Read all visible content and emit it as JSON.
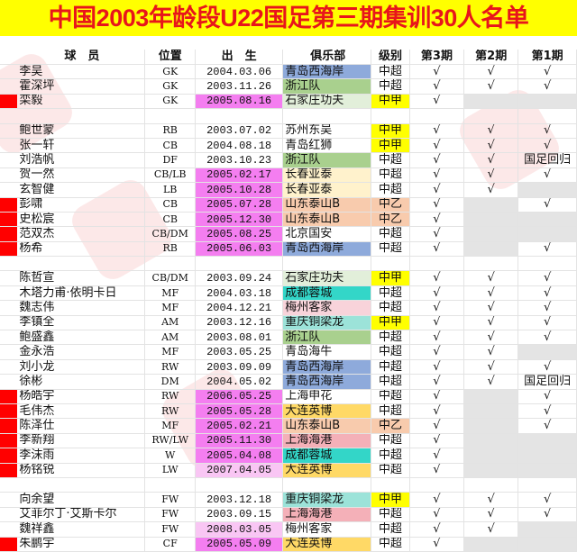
{
  "title": "中国2003年龄段U22国足第三期集训30人名单",
  "headers": {
    "name": "球　员",
    "pos": "位置",
    "birth": "出　生",
    "club": "俱乐部",
    "level": "级别",
    "p3": "第3期",
    "p2": "第2期",
    "p1": "第1期"
  },
  "colors": {
    "marker": "#ff0000",
    "title_bg": "#ffff00",
    "title_text": "#e8151b",
    "not_called": "#e4e4e4",
    "birth_u21": "#f47ef0",
    "birth_light": "#f9c6f4"
  },
  "rows": [
    {
      "name": "李吴",
      "pos": "GK",
      "birth": "2004.03.06",
      "club": "青岛西海岸",
      "club_color": "#8eaadb",
      "level": "中超",
      "p3": "√",
      "p2": "√",
      "p1": "√"
    },
    {
      "name": "霍深坪",
      "pos": "GK",
      "birth": "2003.11.26",
      "club": "浙江队",
      "club_color": "#a9d08e",
      "level": "中超",
      "p3": "√",
      "p2": "√",
      "p1": "√"
    },
    {
      "name": "栾毅",
      "pos": "GK",
      "birth": "2005.08.16",
      "birth_color": "#f47ef0",
      "marker": true,
      "club": "石家庄功夫",
      "club_color": "#e2efda",
      "level": "中甲",
      "level_color": "#ffff00",
      "p3": "√",
      "p2": null,
      "p1": null
    },
    {
      "blank": true
    },
    {
      "name": "鲍世蒙",
      "pos": "RB",
      "birth": "2003.07.02",
      "club": "苏州东吴",
      "level": "中甲",
      "level_color": "#ffff00",
      "p3": "√",
      "p2": "√",
      "p1": "√"
    },
    {
      "name": "张一轩",
      "pos": "CB",
      "birth": "2004.08.18",
      "club": "青岛红狮",
      "level": "中甲",
      "level_color": "#ffff00",
      "p3": "√",
      "p2": "√",
      "p1": "√"
    },
    {
      "name": "刘浩帆",
      "pos": "DF",
      "birth": "2003.10.23",
      "club": "浙江队",
      "club_color": "#a9d08e",
      "level": "中超",
      "p3": "√",
      "p2": "√",
      "p1": "国足回归"
    },
    {
      "name": "贺一然",
      "pos": "CB/LB",
      "birth": "2005.02.17",
      "birth_color": "#f47ef0",
      "club": "长春亚泰",
      "club_color": "#fff2cc",
      "level": "中超",
      "p3": "√",
      "p2": "√",
      "p1": "√"
    },
    {
      "name": "玄智健",
      "pos": "LB",
      "birth": "2005.10.28",
      "birth_color": "#f47ef0",
      "club": "长春亚泰",
      "club_color": "#fff2cc",
      "level": "中超",
      "p3": "√",
      "p2": "√",
      "p1": null
    },
    {
      "name": "彭啸",
      "pos": "CB",
      "birth": "2005.07.28",
      "birth_color": "#f47ef0",
      "marker": true,
      "club": "山东泰山B",
      "club_color": "#f8cbad",
      "level": "中乙",
      "level_color": "#f8cbad",
      "p3": "√",
      "p2": null,
      "p1": "√"
    },
    {
      "name": "史松宸",
      "pos": "CB",
      "birth": "2005.12.30",
      "birth_color": "#f47ef0",
      "marker": true,
      "club": "山东泰山B",
      "club_color": "#f8cbad",
      "level": "中乙",
      "level_color": "#f8cbad",
      "p3": "√",
      "p2": null,
      "p1": null
    },
    {
      "name": "范双杰",
      "pos": "CB/DM",
      "birth": "2005.08.25",
      "birth_color": "#f47ef0",
      "marker": true,
      "club": "北京国安",
      "level": "中超",
      "p3": "√",
      "p2": null,
      "p1": null
    },
    {
      "name": "杨希",
      "pos": "RB",
      "birth": "2005.06.03",
      "birth_color": "#f47ef0",
      "marker": true,
      "club": "青岛西海岸",
      "club_color": "#8eaadb",
      "level": "中超",
      "p3": "√",
      "p2": null,
      "p1": "√"
    },
    {
      "blank": true
    },
    {
      "name": "陈哲宣",
      "pos": "CB/DM",
      "birth": "2003.09.24",
      "club": "石家庄功夫",
      "club_color": "#e2efda",
      "level": "中甲",
      "level_color": "#ffff00",
      "p3": "√",
      "p2": "√",
      "p1": "√"
    },
    {
      "name": "木塔力甫·依明卡日",
      "pos": "MF",
      "birth": "2004.03.18",
      "club": "成都蓉城",
      "club_color": "#33d6c8",
      "level": "中超",
      "p3": "√",
      "p2": "√",
      "p1": "√"
    },
    {
      "name": "魏志伟",
      "pos": "MF",
      "birth": "2004.12.21",
      "club": "梅州客家",
      "club_color": "#f8d3da",
      "level": "中超",
      "p3": "√",
      "p2": "√",
      "p1": "√"
    },
    {
      "name": "李镇全",
      "pos": "AM",
      "birth": "2003.12.16",
      "club": "重庆铜梁龙",
      "club_color": "#9ce3d9",
      "level": "中甲",
      "level_color": "#ffff00",
      "p3": "√",
      "p2": "√",
      "p1": "√"
    },
    {
      "name": "鲍盛鑫",
      "pos": "AM",
      "birth": "2003.08.01",
      "club": "浙江队",
      "club_color": "#a9d08e",
      "level": "中超",
      "p3": "√",
      "p2": "√",
      "p1": "√"
    },
    {
      "name": "金永浩",
      "pos": "MF",
      "birth": "2003.05.25",
      "club": "青岛海牛",
      "level": "中超",
      "p3": "√",
      "p2": "√",
      "p1": null
    },
    {
      "name": "刘小龙",
      "pos": "RW",
      "birth": "2003.09.09",
      "club": "青岛西海岸",
      "club_color": "#8eaadb",
      "level": "中超",
      "p3": "√",
      "p2": "√",
      "p1": "√"
    },
    {
      "name": "徐彬",
      "pos": "DM",
      "birth": "2004.05.02",
      "club": "青岛西海岸",
      "club_color": "#8eaadb",
      "level": "中超",
      "p3": "√",
      "p2": "√",
      "p1": "国足回归"
    },
    {
      "name": "杨皓宇",
      "pos": "RW",
      "birth": "2006.05.25",
      "birth_color": "#f47ef0",
      "marker": true,
      "club": "上海申花",
      "level": "中超",
      "p3": "√",
      "p2": null,
      "p1": "√"
    },
    {
      "name": "毛伟杰",
      "pos": "RW",
      "birth": "2005.05.28",
      "birth_color": "#f47ef0",
      "marker": true,
      "club": "大连英博",
      "club_color": "#ffd966",
      "level": "中超",
      "p3": "√",
      "p2": null,
      "p1": "√"
    },
    {
      "name": "陈泽仕",
      "pos": "MF",
      "birth": "2005.02.21",
      "birth_color": "#f47ef0",
      "marker": true,
      "club": "山东泰山B",
      "club_color": "#f8cbad",
      "level": "中乙",
      "level_color": "#f8cbad",
      "p3": "√",
      "p2": null,
      "p1": "√"
    },
    {
      "name": "李新翔",
      "pos": "RW/LW",
      "birth": "2005.11.30",
      "birth_color": "#f47ef0",
      "marker": true,
      "club": "上海海港",
      "club_color": "#f4b0b8",
      "level": "中超",
      "p3": "√",
      "p2": null,
      "p1": null
    },
    {
      "name": "李沫雨",
      "pos": "W",
      "birth": "2005.04.08",
      "birth_color": "#f47ef0",
      "marker": true,
      "club": "成都蓉城",
      "club_color": "#33d6c8",
      "level": "中超",
      "p3": "√",
      "p2": null,
      "p1": null
    },
    {
      "name": "杨铭锐",
      "pos": "LW",
      "birth": "2007.04.05",
      "birth_color": "#f9c6f4",
      "marker": true,
      "club": "大连英博",
      "club_color": "#ffd966",
      "level": "中超",
      "p3": "√",
      "p2": null,
      "p1": null
    },
    {
      "blank": true
    },
    {
      "name": "向余望",
      "pos": "FW",
      "birth": "2003.12.18",
      "club": "重庆铜梁龙",
      "club_color": "#9ce3d9",
      "level": "中甲",
      "level_color": "#ffff00",
      "p3": "√",
      "p2": "√",
      "p1": "√"
    },
    {
      "name": "艾菲尔丁·艾斯卡尔",
      "pos": "FW",
      "birth": "2003.09.15",
      "club": "上海海港",
      "club_color": "#f4b0b8",
      "level": "中超",
      "p3": "√",
      "p2": "√",
      "p1": "√"
    },
    {
      "name": "魏祥鑫",
      "pos": "FW",
      "birth": "2008.03.05",
      "birth_color": "#f9c6f4",
      "club": "梅州客家",
      "level": "中超",
      "p3": "√",
      "p2": "√",
      "p1": null
    },
    {
      "name": "朱鹏宇",
      "pos": "CF",
      "birth": "2005.05.09",
      "birth_color": "#f47ef0",
      "marker": true,
      "club": "大连英博",
      "club_color": "#ffd966",
      "level": "中超",
      "p3": "√",
      "p2": null,
      "p1": null
    }
  ]
}
